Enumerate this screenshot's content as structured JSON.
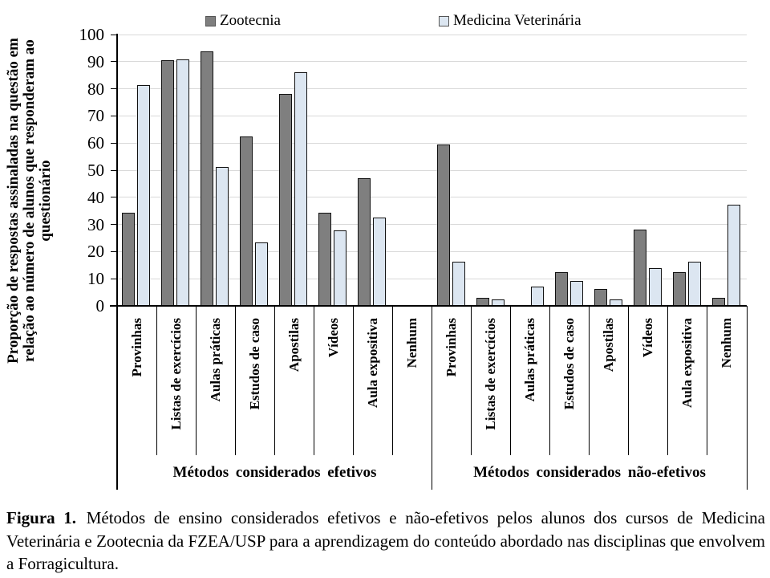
{
  "chart_data": {
    "type": "bar",
    "title": "",
    "ylabel": "Proporção de respostas assinaladas na questão em relação ao número de alunos que responderam ao questionário",
    "ylabel_lines": [
      "Proporção de respostas assinaladas na questão em",
      "relação ao número de alunos que responderam ao",
      "questionário"
    ],
    "ylim": [
      0,
      100
    ],
    "y_tick_step": 10,
    "grid": true,
    "gridline_color": "#D9D9D9",
    "axis_color": "#000000",
    "bar_border_color": "#111111",
    "legend": {
      "position": "top",
      "items": [
        {
          "label": "Zootecnia",
          "fill": "#7F7F7F"
        },
        {
          "label": "Medicina Veterinária",
          "fill": "#DCE6F1"
        }
      ]
    },
    "categories": [
      "Provinhas",
      "Listas de exercícios",
      "Aulas práticas",
      "Estudos de caso",
      "Apostilas",
      "Vídeos",
      "Aula expositiva",
      "Nenhum"
    ],
    "groups": [
      {
        "label": "Métodos considerados efetivos",
        "series": [
          {
            "name": "Zootecnia",
            "values": [
              34.4,
              90.6,
              93.8,
              62.5,
              78.1,
              34.4,
              46.9,
              0
            ]
          },
          {
            "name": "Medicina Veterinária",
            "values": [
              81.4,
              90.7,
              51.2,
              23.3,
              86.0,
              27.9,
              32.6,
              0
            ]
          }
        ]
      },
      {
        "label": "Métodos considerados não-efetivos",
        "series": [
          {
            "name": "Zootecnia",
            "values": [
              59.4,
              3.1,
              0,
              12.5,
              6.3,
              28.1,
              12.5,
              3.1
            ]
          },
          {
            "name": "Medicina Veterinária",
            "values": [
              16.3,
              2.3,
              7.0,
              9.3,
              2.3,
              14.0,
              16.3,
              37.2
            ]
          }
        ]
      }
    ]
  },
  "caption": {
    "label": "Figura 1.",
    "text": "Métodos de ensino considerados efetivos e não-efetivos pelos alunos dos cursos de Medicina Veterinária e Zootecnia da FZEA/USP para a aprendizagem do conteúdo abordado nas disciplinas que envolvem a Forragicultura."
  }
}
